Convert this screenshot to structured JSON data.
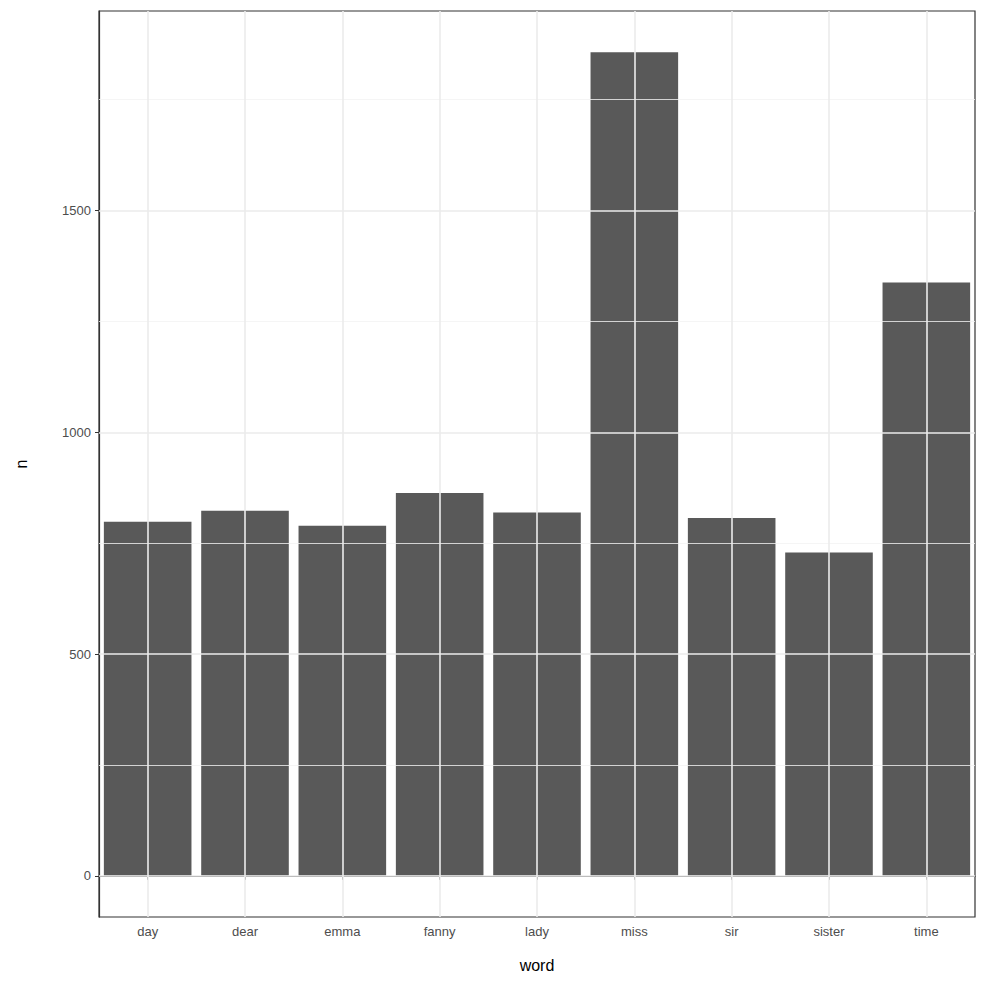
{
  "chart_data": {
    "type": "bar",
    "x_label": "word",
    "y_label": "n",
    "categories": [
      "day",
      "dear",
      "emma",
      "fanny",
      "lady",
      "miss",
      "sir",
      "sister",
      "time"
    ],
    "values": [
      798,
      823,
      789,
      863,
      819,
      1857,
      807,
      729,
      1338
    ],
    "color": "#595959",
    "ylim": [
      -93,
      1950
    ],
    "yticks": [
      0,
      500,
      1000,
      1500
    ],
    "grid": true
  }
}
